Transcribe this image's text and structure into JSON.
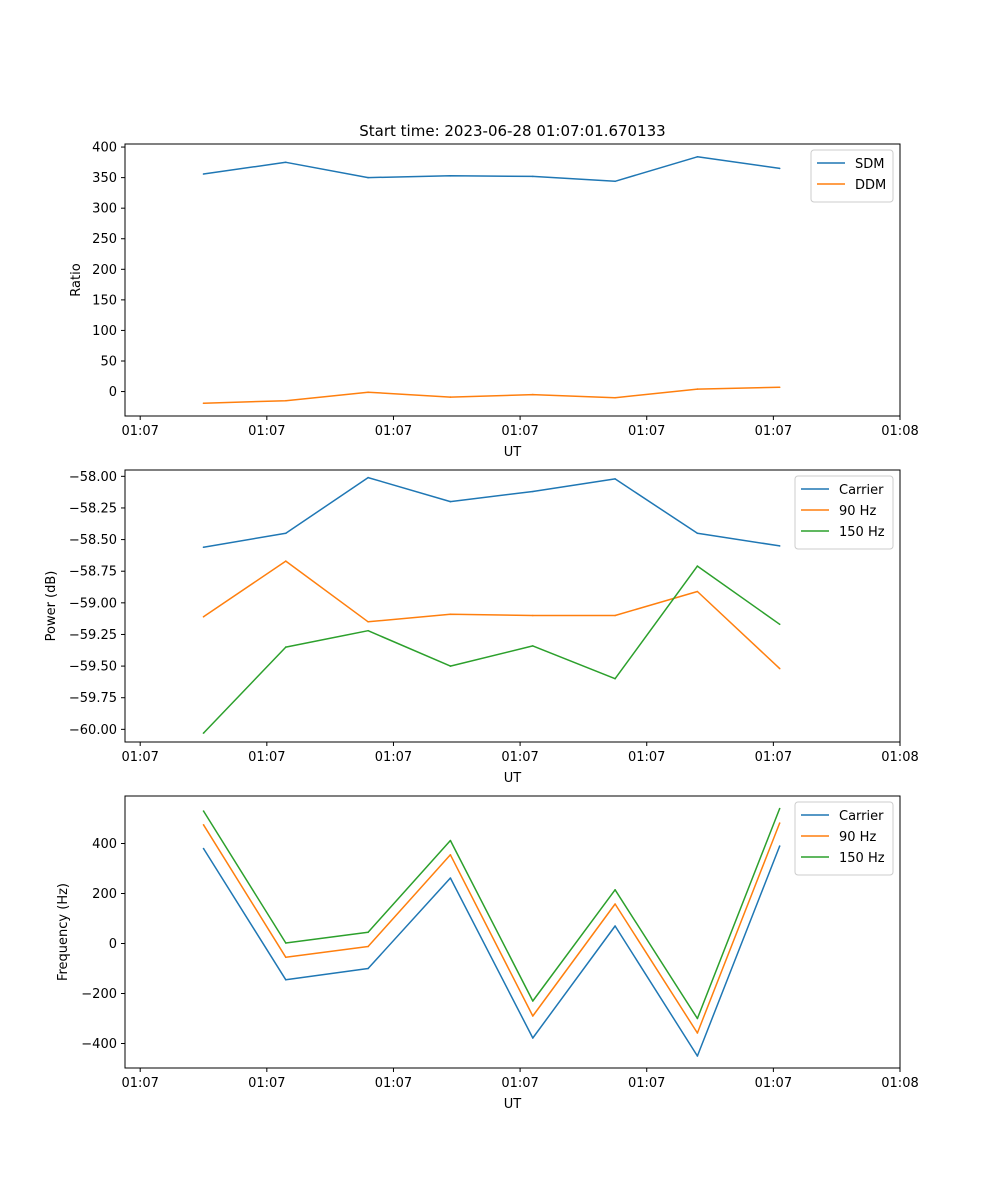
{
  "figure": {
    "title": "Start time: 2023-06-28 01:07:01.670133"
  },
  "colors": {
    "blue": "#1f77b4",
    "orange": "#ff7f0e",
    "green": "#2ca02c"
  },
  "chart_data": [
    {
      "type": "line",
      "title": "Start time: 2023-06-28 01:07:01.670133",
      "xlabel": "UT",
      "ylabel": "Ratio",
      "xticks": [
        "01:07",
        "01:07",
        "01:07",
        "01:07",
        "01:07",
        "01:07",
        "01:08"
      ],
      "xlim": [
        -0.12,
        6.0
      ],
      "ylim": [
        -40,
        405
      ],
      "yticks": [
        0,
        50,
        100,
        150,
        200,
        250,
        300,
        350,
        400
      ],
      "ytick_labels": [
        "0",
        "50",
        "100",
        "150",
        "200",
        "250",
        "300",
        "350",
        "400"
      ],
      "legend": "top-right",
      "grid": false,
      "x": [
        0.5,
        1.15,
        1.8,
        2.45,
        3.1,
        3.75,
        4.4,
        5.05
      ],
      "series": [
        {
          "name": "SDM",
          "color": "#1f77b4",
          "values": [
            356,
            375,
            350,
            353,
            352,
            344,
            384,
            365
          ]
        },
        {
          "name": "DDM",
          "color": "#ff7f0e",
          "values": [
            -19,
            -15,
            -1,
            -9,
            -5,
            -10,
            4,
            7
          ]
        }
      ]
    },
    {
      "type": "line",
      "title": "",
      "xlabel": "UT",
      "ylabel": "Power (dB)",
      "xticks": [
        "01:07",
        "01:07",
        "01:07",
        "01:07",
        "01:07",
        "01:07",
        "01:08"
      ],
      "xlim": [
        -0.12,
        6.0
      ],
      "ylim": [
        -60.1,
        -57.95
      ],
      "yticks": [
        -58.0,
        -58.25,
        -58.5,
        -58.75,
        -59.0,
        -59.25,
        -59.5,
        -59.75,
        -60.0
      ],
      "ytick_labels": [
        "−58.00",
        "−58.25",
        "−58.50",
        "−58.75",
        "−59.00",
        "−59.25",
        "−59.50",
        "−59.75",
        "−60.00"
      ],
      "legend": "top-right",
      "grid": false,
      "x": [
        0.5,
        1.15,
        1.8,
        2.45,
        3.1,
        3.75,
        4.4,
        5.05
      ],
      "series": [
        {
          "name": "Carrier",
          "color": "#1f77b4",
          "values": [
            -58.56,
            -58.45,
            -58.01,
            -58.2,
            -58.12,
            -58.02,
            -58.45,
            -58.55
          ]
        },
        {
          "name": "90 Hz",
          "color": "#ff7f0e",
          "values": [
            -59.11,
            -58.67,
            -59.15,
            -59.09,
            -59.1,
            -59.1,
            -58.91,
            -59.52
          ]
        },
        {
          "name": "150 Hz",
          "color": "#2ca02c",
          "values": [
            -60.03,
            -59.35,
            -59.22,
            -59.5,
            -59.34,
            -59.6,
            -58.71,
            -59.17
          ]
        }
      ]
    },
    {
      "type": "line",
      "title": "",
      "xlabel": "UT",
      "ylabel": "Frequency (Hz)",
      "xticks": [
        "01:07",
        "01:07",
        "01:07",
        "01:07",
        "01:07",
        "01:07",
        "01:08"
      ],
      "xlim": [
        -0.12,
        6.0
      ],
      "ylim": [
        -498,
        590
      ],
      "yticks": [
        -400,
        -200,
        0,
        200,
        400
      ],
      "ytick_labels": [
        "−400",
        "−200",
        "0",
        "200",
        "400"
      ],
      "legend": "top-right",
      "grid": false,
      "x": [
        0.5,
        1.15,
        1.8,
        2.45,
        3.1,
        3.75,
        4.4,
        5.05
      ],
      "series": [
        {
          "name": "Carrier",
          "color": "#1f77b4",
          "values": [
            380,
            -145,
            -100,
            262,
            -378,
            70,
            -450,
            390
          ]
        },
        {
          "name": "90 Hz",
          "color": "#ff7f0e",
          "values": [
            475,
            -55,
            -12,
            355,
            -290,
            158,
            -358,
            482
          ]
        },
        {
          "name": "150 Hz",
          "color": "#2ca02c",
          "values": [
            530,
            2,
            45,
            412,
            -230,
            215,
            -300,
            540
          ]
        }
      ]
    }
  ]
}
